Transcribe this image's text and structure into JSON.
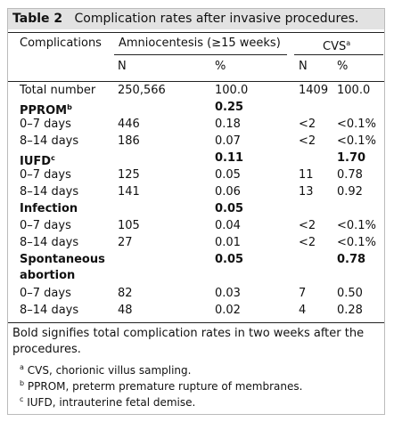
{
  "title": {
    "label": "Table 2",
    "text": "Complication rates after invasive procedures."
  },
  "header": {
    "first": "Complications",
    "groups": [
      {
        "text": "Amniocentesis (≥15 weeks)"
      },
      {
        "text": "CVS",
        "sup": "a"
      }
    ],
    "sub": [
      "N",
      "%",
      "N",
      "%"
    ]
  },
  "rows": [
    {
      "label": "Total number",
      "bold": false,
      "cells": [
        "250,566",
        "100.0",
        "1409",
        "100.0"
      ]
    },
    {
      "label": "PPROM",
      "sup": "b",
      "bold": true,
      "cells": [
        null,
        "0.25",
        null,
        null
      ]
    },
    {
      "label": "0–7 days",
      "bold": false,
      "cells": [
        "446",
        "0.18",
        "<2",
        "<0.1%"
      ]
    },
    {
      "label": "8–14 days",
      "bold": false,
      "cells": [
        "186",
        "0.07",
        "<2",
        "<0.1%"
      ]
    },
    {
      "label": "IUFD",
      "sup": "c",
      "bold": true,
      "cells": [
        null,
        "0.11",
        null,
        "1.70"
      ]
    },
    {
      "label": "0–7 days",
      "bold": false,
      "cells": [
        "125",
        "0.05",
        "11",
        "0.78"
      ]
    },
    {
      "label": "8–14 days",
      "bold": false,
      "cells": [
        "141",
        "0.06",
        "13",
        "0.92"
      ]
    },
    {
      "label": "Infection",
      "bold": true,
      "cells": [
        null,
        "0.05",
        null,
        null
      ]
    },
    {
      "label": "0–7 days",
      "bold": false,
      "cells": [
        "105",
        "0.04",
        "<2",
        "<0.1%"
      ]
    },
    {
      "label": "8–14 days",
      "bold": false,
      "cells": [
        "27",
        "0.01",
        "<2",
        "<0.1%"
      ]
    },
    {
      "label": "Spontaneous abortion",
      "bold": true,
      "cells": [
        null,
        "0.05",
        null,
        "0.78"
      ]
    },
    {
      "label": "0–7 days",
      "bold": false,
      "cells": [
        "82",
        "0.03",
        "7",
        "0.50"
      ]
    },
    {
      "label": "8–14 days",
      "bold": false,
      "cells": [
        "48",
        "0.02",
        "4",
        "0.28"
      ]
    }
  ],
  "note": "Bold signifies total complication rates in two weeks after the procedures.",
  "footnotes": [
    {
      "mark": "a",
      "text": "CVS, chorionic villus sampling."
    },
    {
      "mark": "b",
      "text": "PPROM, preterm premature rupture of membranes."
    },
    {
      "mark": "c",
      "text": "IUFD, intrauterine fetal demise."
    }
  ]
}
